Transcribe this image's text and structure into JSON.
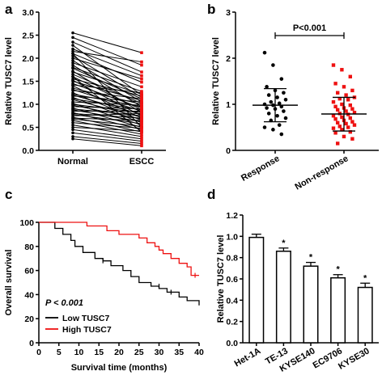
{
  "chart_data": [
    {
      "panel": "a",
      "type": "line",
      "ylabel": "Relative TUSC7 level",
      "categories": [
        "Normal",
        "ESCC"
      ],
      "ylim": [
        0,
        3.0
      ],
      "yticks": [
        "0.0",
        "0.5",
        "1.0",
        "1.5",
        "2.0",
        "2.5",
        "3.0"
      ],
      "pairs": [
        [
          2.55,
          2.12
        ],
        [
          2.45,
          1.85
        ],
        [
          2.35,
          1.7
        ],
        [
          2.28,
          1.2
        ],
        [
          2.2,
          1.62
        ],
        [
          2.15,
          1.92
        ],
        [
          2.1,
          1.48
        ],
        [
          2.05,
          1.15
        ],
        [
          2.0,
          1.55
        ],
        [
          1.95,
          1.05
        ],
        [
          1.9,
          1.38
        ],
        [
          1.85,
          0.95
        ],
        [
          1.8,
          1.28
        ],
        [
          1.78,
          1.12
        ],
        [
          1.72,
          0.82
        ],
        [
          1.7,
          1.22
        ],
        [
          1.65,
          1.02
        ],
        [
          1.6,
          0.88
        ],
        [
          1.55,
          1.18
        ],
        [
          1.52,
          0.75
        ],
        [
          1.5,
          1.08
        ],
        [
          1.45,
          0.92
        ],
        [
          1.42,
          1.25
        ],
        [
          1.4,
          0.7
        ],
        [
          1.35,
          1.0
        ],
        [
          1.32,
          0.85
        ],
        [
          1.3,
          1.12
        ],
        [
          1.25,
          0.65
        ],
        [
          1.22,
          0.95
        ],
        [
          1.2,
          0.78
        ],
        [
          1.18,
          1.05
        ],
        [
          1.15,
          0.6
        ],
        [
          1.12,
          0.88
        ],
        [
          1.1,
          0.72
        ],
        [
          1.05,
          0.98
        ],
        [
          1.02,
          0.55
        ],
        [
          1.0,
          0.82
        ],
        [
          0.98,
          0.68
        ],
        [
          0.95,
          0.9
        ],
        [
          0.92,
          0.5
        ],
        [
          0.9,
          0.75
        ],
        [
          0.88,
          0.62
        ],
        [
          0.85,
          0.85
        ],
        [
          0.82,
          0.45
        ],
        [
          0.8,
          0.7
        ],
        [
          0.78,
          0.58
        ],
        [
          0.75,
          0.8
        ],
        [
          0.72,
          0.4
        ],
        [
          0.7,
          0.65
        ],
        [
          0.68,
          0.52
        ],
        [
          0.65,
          0.35
        ],
        [
          0.6,
          0.48
        ],
        [
          0.55,
          0.3
        ],
        [
          0.5,
          0.42
        ],
        [
          0.45,
          0.25
        ],
        [
          0.38,
          0.2
        ],
        [
          0.3,
          0.15
        ],
        [
          0.25,
          0.1
        ],
        [
          1.6,
          0.4
        ],
        [
          2.1,
          0.5
        ]
      ]
    },
    {
      "panel": "b",
      "type": "scatter",
      "ylabel": "Relative TUSC7 level",
      "categories": [
        "Response",
        "Non-response"
      ],
      "ylim": [
        0,
        3
      ],
      "yticks": [
        "0",
        "1",
        "2",
        "3"
      ],
      "annotation": "P<0.001",
      "series": [
        {
          "color": "#000000",
          "marker": "circle",
          "mean": 0.98,
          "sd": [
            0.62,
            1.34
          ],
          "values": [
            2.12,
            1.85,
            1.55,
            1.38,
            1.3,
            1.25,
            1.2,
            1.15,
            1.1,
            1.05,
            1.02,
            1.0,
            0.98,
            0.95,
            0.92,
            0.9,
            0.85,
            0.8,
            0.75,
            0.7,
            0.65,
            0.55,
            0.5,
            0.45,
            0.35
          ]
        },
        {
          "color": "#ee1111",
          "marker": "square",
          "mean": 0.79,
          "sd": [
            0.42,
            1.15
          ],
          "values": [
            1.85,
            1.75,
            1.6,
            1.45,
            1.38,
            1.3,
            1.25,
            1.2,
            1.15,
            1.12,
            1.1,
            1.05,
            1.0,
            0.98,
            0.95,
            0.92,
            0.9,
            0.88,
            0.85,
            0.82,
            0.8,
            0.78,
            0.75,
            0.72,
            0.7,
            0.68,
            0.65,
            0.62,
            0.6,
            0.58,
            0.55,
            0.52,
            0.5,
            0.48,
            0.45,
            0.4,
            0.38,
            0.3,
            0.25,
            0.15
          ]
        }
      ]
    },
    {
      "panel": "c",
      "type": "line",
      "ylabel": "Overall survival",
      "xlabel": "Survival time (months)",
      "xlim": [
        0,
        40
      ],
      "ylim": [
        0,
        100
      ],
      "xticks": [
        "0",
        "5",
        "10",
        "15",
        "20",
        "25",
        "30",
        "35",
        "40"
      ],
      "yticks": [
        "0",
        "20",
        "40",
        "60",
        "80",
        "100"
      ],
      "annotation": "P < 0.001",
      "series": [
        {
          "name": "Low TUSC7",
          "color": "#000000",
          "steps": [
            [
              0,
              100
            ],
            [
              4,
              100
            ],
            [
              4,
              95
            ],
            [
              6,
              95
            ],
            [
              6,
              90
            ],
            [
              8,
              90
            ],
            [
              8,
              85
            ],
            [
              9,
              85
            ],
            [
              9,
              80
            ],
            [
              11,
              80
            ],
            [
              11,
              75
            ],
            [
              14,
              75
            ],
            [
              14,
              70
            ],
            [
              16,
              70
            ],
            [
              16,
              68
            ],
            [
              18,
              68
            ],
            [
              18,
              64
            ],
            [
              21,
              64
            ],
            [
              21,
              60
            ],
            [
              23,
              60
            ],
            [
              23,
              55
            ],
            [
              25,
              55
            ],
            [
              25,
              50
            ],
            [
              28,
              50
            ],
            [
              28,
              47
            ],
            [
              30,
              47
            ],
            [
              30,
              45
            ],
            [
              32,
              45
            ],
            [
              32,
              42
            ],
            [
              35,
              42
            ],
            [
              35,
              38
            ],
            [
              37,
              38
            ],
            [
              37,
              35
            ],
            [
              40,
              35
            ],
            [
              40,
              31
            ]
          ],
          "censor": [
            [
              16,
              68
            ],
            [
              30,
              47
            ],
            [
              33,
              42
            ]
          ]
        },
        {
          "name": "High TUSC7",
          "color": "#ee1111",
          "steps": [
            [
              0,
              100
            ],
            [
              12,
              100
            ],
            [
              12,
              97
            ],
            [
              17,
              97
            ],
            [
              17,
              93
            ],
            [
              20,
              93
            ],
            [
              20,
              90
            ],
            [
              25,
              90
            ],
            [
              25,
              87
            ],
            [
              27,
              87
            ],
            [
              27,
              83
            ],
            [
              29,
              83
            ],
            [
              29,
              80
            ],
            [
              30,
              80
            ],
            [
              30,
              77
            ],
            [
              31,
              77
            ],
            [
              31,
              74
            ],
            [
              33,
              74
            ],
            [
              33,
              70
            ],
            [
              35,
              70
            ],
            [
              35,
              66
            ],
            [
              37,
              66
            ],
            [
              37,
              63
            ],
            [
              38,
              63
            ],
            [
              38,
              56
            ],
            [
              40,
              56
            ]
          ],
          "censor": [
            [
              39,
              56
            ]
          ]
        }
      ]
    },
    {
      "panel": "d",
      "type": "bar",
      "ylabel": "Relative TUSC7 level",
      "categories": [
        "Het-1A",
        "TE-13",
        "KYSE140",
        "EC9706",
        "KYSE30"
      ],
      "values": [
        0.99,
        0.86,
        0.72,
        0.61,
        0.52
      ],
      "errors": [
        0.03,
        0.03,
        0.035,
        0.03,
        0.04
      ],
      "significance": [
        "",
        "*",
        "*",
        "*",
        "*"
      ],
      "ylim": [
        0,
        1.2
      ],
      "yticks": [
        "0.0",
        "0.2",
        "0.4",
        "0.6",
        "0.8",
        "1.0",
        "1.2"
      ]
    }
  ],
  "panels": {
    "a": "a",
    "b": "b",
    "c": "c",
    "d": "d"
  }
}
